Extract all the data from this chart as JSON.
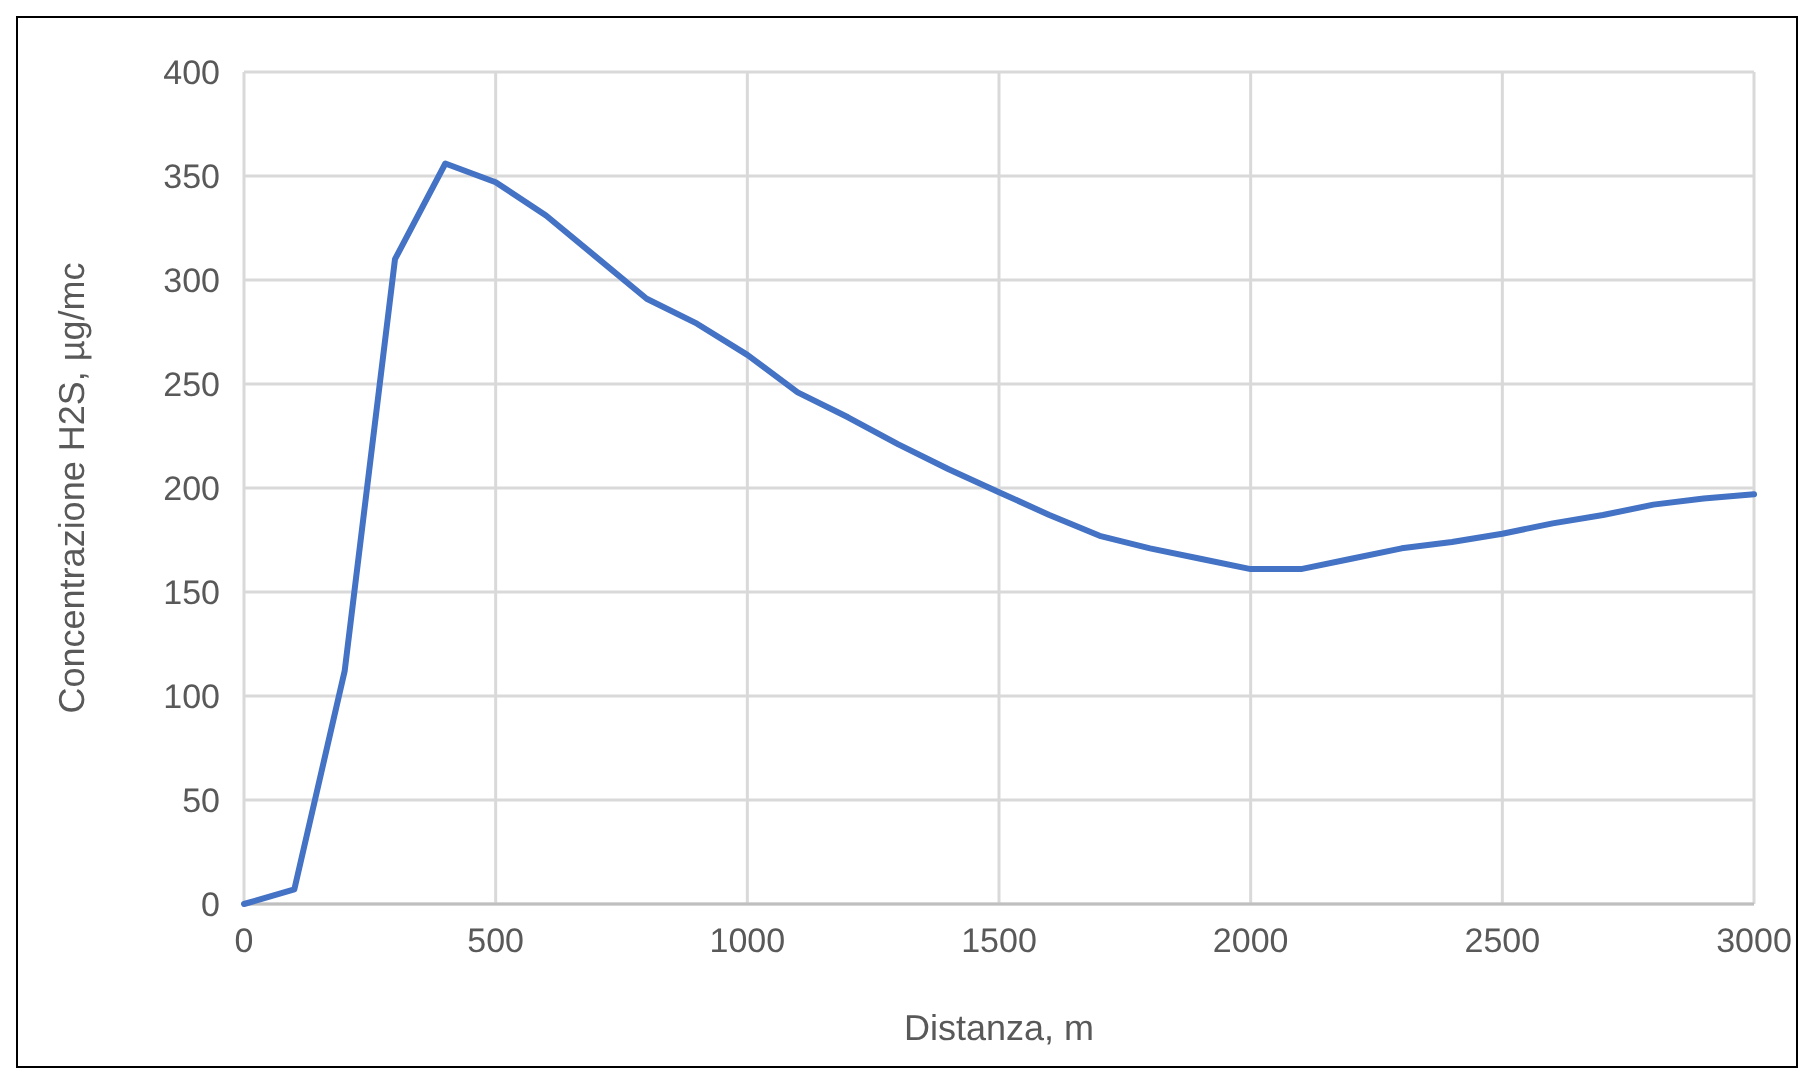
{
  "chart_data": {
    "type": "line",
    "xlabel": "Distanza, m",
    "ylabel": "Concentrazione H2S, µg/mc",
    "x": [
      0,
      100,
      200,
      300,
      400,
      500,
      600,
      700,
      800,
      900,
      1000,
      1100,
      1200,
      1300,
      1400,
      1500,
      1600,
      1700,
      1800,
      1900,
      2000,
      2100,
      2200,
      2300,
      2400,
      2500,
      2600,
      2700,
      2800,
      2900,
      3000
    ],
    "series": [
      {
        "color": "#4472c4",
        "values": [
          0,
          7,
          112,
          310,
          356,
          347,
          331,
          311,
          291,
          279,
          264,
          246,
          234,
          221,
          209,
          198,
          187,
          177,
          171,
          166,
          161,
          161,
          166,
          171,
          174,
          178,
          183,
          187,
          192,
          195,
          197
        ]
      }
    ],
    "xlim": [
      0,
      3000
    ],
    "xticks": [
      0,
      500,
      1000,
      1500,
      2000,
      2500,
      3000
    ],
    "ylim": [
      0,
      400
    ],
    "yticks": [
      0,
      50,
      100,
      150,
      200,
      250,
      300,
      350,
      400
    ],
    "grid": true,
    "marker": "none",
    "line_style": "solid"
  }
}
